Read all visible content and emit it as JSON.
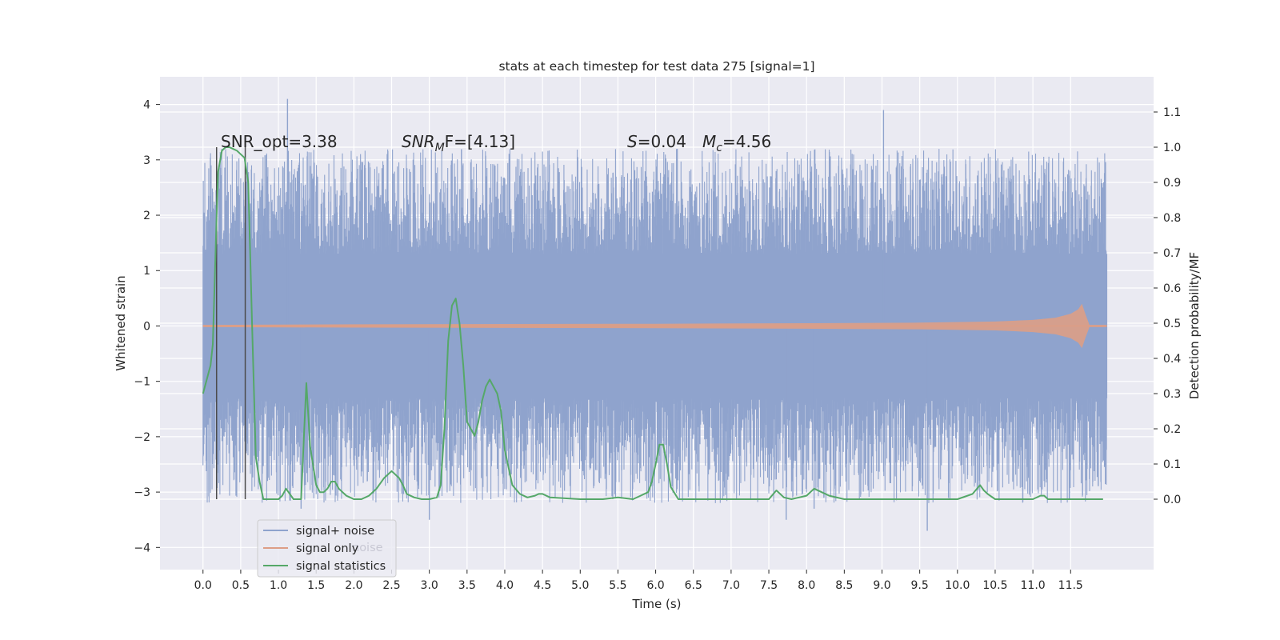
{
  "chart_data": {
    "type": "line",
    "title": "stats at each timestep for test data 275 [signal=1]",
    "xlabel": "Time (s)",
    "ylabel_left": "Whitened strain",
    "ylabel_right": "Detection probability/MF",
    "xlim": [
      -0.57,
      12.6
    ],
    "ylim_left": [
      -4.4,
      4.5
    ],
    "ylim_right": [
      -0.2,
      1.2
    ],
    "x_ticks": [
      0.0,
      0.5,
      1.0,
      1.5,
      2.0,
      2.5,
      3.0,
      3.5,
      4.0,
      4.5,
      5.0,
      5.5,
      6.0,
      6.5,
      7.0,
      7.5,
      8.0,
      8.5,
      9.0,
      9.5,
      10.0,
      10.5,
      11.0,
      11.5
    ],
    "x_tick_labels": [
      "0.0",
      "0.5",
      "1.0",
      "1.5",
      "2.0",
      "2.5",
      "3.0",
      "3.5",
      "4.0",
      "4.5",
      "5.0",
      "5.5",
      "6.0",
      "6.5",
      "7.0",
      "7.5",
      "8.0",
      "8.5",
      "9.0",
      "9.5",
      "10.0",
      "10.5",
      "11.0",
      "11.5"
    ],
    "y_left_ticks": [
      4,
      3,
      2,
      1,
      0,
      -1,
      -2,
      -3,
      -4
    ],
    "y_left_tick_labels": [
      "4",
      "3",
      "2",
      "1",
      "0",
      "−1",
      "−2",
      "−3",
      "−4"
    ],
    "y_right_ticks": [
      1.1,
      1.0,
      0.9,
      0.8,
      0.7,
      0.6,
      0.5,
      0.4,
      0.3,
      0.2,
      0.1,
      0.0
    ],
    "y_right_tick_labels": [
      "1.1",
      "1.0",
      "0.9",
      "0.8",
      "0.7",
      "0.6",
      "0.5",
      "0.4",
      "0.3",
      "0.2",
      "0.1",
      "0.0"
    ],
    "grid": true,
    "legend_position": "lower-left",
    "series": [
      {
        "name": "signal+ noise",
        "axis": "left",
        "color": "#8fa3cd",
        "x_range": [
          0.0,
          11.98
        ],
        "amplitude_core": 1.3,
        "amplitude_spikes": [
          -3.7,
          4.1
        ]
      },
      {
        "name": "signal only",
        "axis": "left",
        "color": "#dd9e86",
        "x_range": [
          0.0,
          11.98
        ],
        "envelope": {
          "x": [
            0.0,
            2.0,
            4.0,
            6.0,
            8.0,
            9.5,
            10.5,
            11.0,
            11.3,
            11.5,
            11.6,
            11.65,
            11.7,
            11.75,
            11.98
          ],
          "amp": [
            0.02,
            0.03,
            0.035,
            0.04,
            0.05,
            0.06,
            0.08,
            0.11,
            0.15,
            0.22,
            0.3,
            0.4,
            0.2,
            0.02,
            0.02
          ]
        }
      },
      {
        "name": "signal statistics",
        "axis": "right",
        "color": "#55a868",
        "x": [
          0.0,
          0.05,
          0.1,
          0.13,
          0.18,
          0.2,
          0.25,
          0.3,
          0.35,
          0.4,
          0.45,
          0.5,
          0.55,
          0.6,
          0.65,
          0.7,
          0.75,
          0.8,
          0.9,
          1.0,
          1.05,
          1.1,
          1.2,
          1.3,
          1.37,
          1.42,
          1.5,
          1.55,
          1.6,
          1.65,
          1.7,
          1.75,
          1.8,
          1.9,
          1.95,
          2.0,
          2.1,
          2.2,
          2.3,
          2.4,
          2.5,
          2.55,
          2.6,
          2.65,
          2.7,
          2.8,
          2.9,
          3.0,
          3.1,
          3.15,
          3.2,
          3.25,
          3.3,
          3.35,
          3.4,
          3.45,
          3.5,
          3.55,
          3.6,
          3.65,
          3.7,
          3.75,
          3.8,
          3.85,
          3.9,
          3.95,
          4.0,
          4.1,
          4.2,
          4.3,
          4.4,
          4.45,
          4.5,
          4.6,
          5.0,
          5.3,
          5.5,
          5.7,
          5.8,
          5.9,
          5.95,
          6.0,
          6.05,
          6.1,
          6.15,
          6.2,
          6.3,
          7.0,
          7.5,
          7.6,
          7.7,
          7.8,
          7.9,
          8.0,
          8.1,
          8.2,
          8.3,
          8.5,
          9.0,
          10.0,
          10.2,
          10.3,
          10.35,
          10.4,
          10.5,
          10.7,
          11.0,
          11.1,
          11.15,
          11.2,
          11.5,
          11.93
        ],
        "y": [
          0.3,
          0.34,
          0.38,
          0.44,
          0.8,
          0.93,
          0.99,
          1.0,
          1.0,
          0.995,
          0.99,
          0.98,
          0.97,
          0.9,
          0.5,
          0.12,
          0.05,
          0.0,
          0.0,
          0.0,
          0.01,
          0.03,
          0.0,
          0.0,
          0.33,
          0.15,
          0.04,
          0.02,
          0.02,
          0.03,
          0.05,
          0.05,
          0.03,
          0.01,
          0.005,
          0.0,
          0.0,
          0.01,
          0.03,
          0.06,
          0.08,
          0.07,
          0.06,
          0.04,
          0.015,
          0.005,
          0.0,
          0.0,
          0.005,
          0.04,
          0.2,
          0.45,
          0.55,
          0.57,
          0.5,
          0.38,
          0.22,
          0.2,
          0.18,
          0.22,
          0.28,
          0.32,
          0.34,
          0.32,
          0.3,
          0.25,
          0.14,
          0.04,
          0.015,
          0.005,
          0.01,
          0.015,
          0.015,
          0.005,
          0.0,
          0.0,
          0.005,
          0.0,
          0.01,
          0.02,
          0.05,
          0.1,
          0.155,
          0.155,
          0.1,
          0.035,
          0.0,
          0.0,
          0.0,
          0.025,
          0.005,
          0.0,
          0.005,
          0.01,
          0.03,
          0.02,
          0.01,
          0.0,
          0.0,
          0.0,
          0.015,
          0.04,
          0.025,
          0.015,
          0.0,
          0.0,
          0.0,
          0.01,
          0.01,
          0.0,
          0.0,
          0.0
        ]
      },
      {
        "name": "",
        "axis": "right",
        "color": "#4c4c4c",
        "x": [
          0.18,
          0.18
        ],
        "y": [
          0.0,
          1.0
        ]
      },
      {
        "name": "",
        "axis": "right",
        "color": "#4c4c4c",
        "x": [
          0.56,
          0.56
        ],
        "y": [
          0.0,
          1.0
        ]
      }
    ],
    "annotations": {
      "snr_opt": "SNR_opt=3.38",
      "snr_mf_prefix": "SNR",
      "snr_mf_sub": "M",
      "snr_mf_suffix": "F=[4.13]",
      "s_label": "S",
      "s_value": "=0.04",
      "mc_label": "M",
      "mc_sub": "c",
      "mc_value": "=4.56"
    },
    "legend_ghost_text": "noise"
  }
}
